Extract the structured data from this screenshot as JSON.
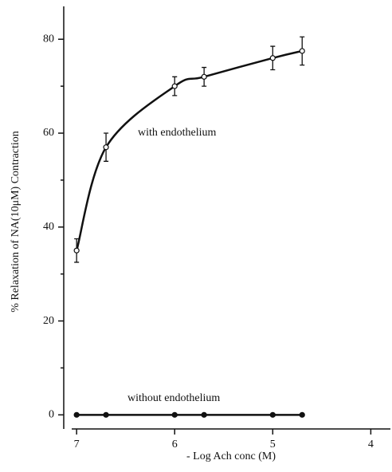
{
  "chart_data": {
    "type": "line",
    "x_label": "- Log Ach conc (M)",
    "y_label": "% Relaxation of NA(10μM) Contraction",
    "xlim": [
      7.05,
      3.8
    ],
    "xticks": [
      7,
      6,
      5,
      4
    ],
    "ylim": [
      -3,
      87
    ],
    "yticks": [
      0,
      20,
      40,
      60,
      80
    ],
    "yminorticks": [
      10,
      30,
      50,
      70
    ],
    "series": [
      {
        "name": "with endothelium",
        "color": "#111111",
        "marker": "open",
        "x": [
          7,
          6.7,
          6,
          5.7,
          5,
          4.7
        ],
        "values": [
          35,
          57,
          70,
          72,
          76,
          77.5
        ],
        "errors": [
          2.5,
          3,
          2,
          2,
          2.5,
          3
        ]
      },
      {
        "name": "without endothelium",
        "color": "#111111",
        "marker": "filled",
        "x": [
          7,
          6.7,
          6,
          5.7,
          5,
          4.7
        ],
        "values": [
          0,
          0,
          0,
          0,
          0,
          0
        ]
      }
    ]
  }
}
